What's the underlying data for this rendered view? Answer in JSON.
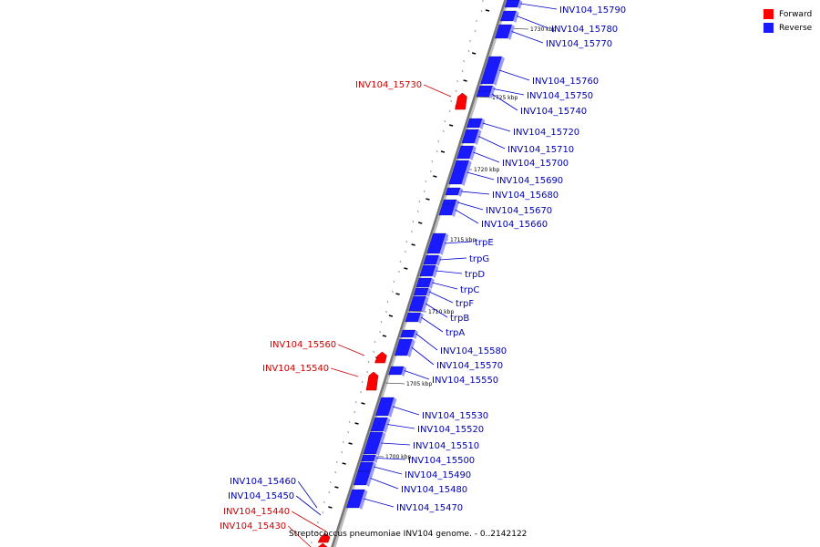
{
  "colors": {
    "forward": "#ff0000",
    "reverse": "#1a1aff",
    "axis": "#777777",
    "tick": "#000000"
  },
  "legend": {
    "forward": "Forward",
    "reverse": "Reverse"
  },
  "footer": "Streptococcus pneumoniae INV104 genome. - 0..2142122",
  "scale_labels": [
    "1730 kbp",
    "1725 kbp",
    "1720 kbp",
    "1715 kbp",
    "1710 kbp",
    "1705 kbp",
    "1700 kbp"
  ],
  "reverse_genes": [
    "INV104_15790",
    "INV104_15780",
    "INV104_15770",
    "INV104_15760",
    "INV104_15750",
    "INV104_15740",
    "INV104_15720",
    "INV104_15710",
    "INV104_15700",
    "INV104_15690",
    "INV104_15680",
    "INV104_15670",
    "INV104_15660",
    "trpE",
    "trpG",
    "trpD",
    "trpC",
    "trpF",
    "trpB",
    "trpA",
    "INV104_15580",
    "INV104_15570",
    "INV104_15550",
    "INV104_15530",
    "INV104_15520",
    "INV104_15510",
    "INV104_15500",
    "INV104_15490",
    "INV104_15480",
    "INV104_15470"
  ],
  "left_genes": [
    {
      "name": "INV104_15730",
      "strand": "forward"
    },
    {
      "name": "INV104_15560",
      "strand": "forward"
    },
    {
      "name": "INV104_15540",
      "strand": "forward"
    },
    {
      "name": "INV104_15460",
      "strand": "reverse"
    },
    {
      "name": "INV104_15450",
      "strand": "reverse"
    },
    {
      "name": "INV104_15440",
      "strand": "forward"
    },
    {
      "name": "INV104_15430",
      "strand": "forward"
    }
  ]
}
